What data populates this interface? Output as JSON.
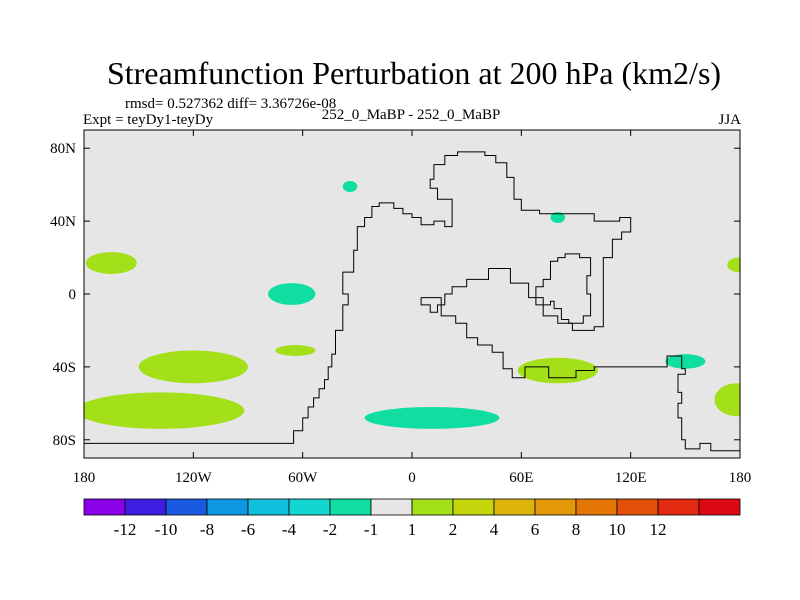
{
  "chart_data": {
    "type": "heatmap",
    "title": "Streamfunction Perturbation at 200 hPa (km2/s)",
    "rmsd_line": "rmsd= 0.527362 diff= 3.36726e-08",
    "experiment_label": "Expt = teyDy1-teyDy",
    "center_label": "252_0_MaBP - 252_0_MaBP",
    "season_label": "JJA",
    "xlim": [
      -180,
      180
    ],
    "ylim": [
      -90,
      90
    ],
    "x_ticks": [
      {
        "value": -180,
        "label": "180"
      },
      {
        "value": -120,
        "label": "120W"
      },
      {
        "value": -60,
        "label": "60W"
      },
      {
        "value": 0,
        "label": "0"
      },
      {
        "value": 60,
        "label": "60E"
      },
      {
        "value": 120,
        "label": "120E"
      },
      {
        "value": 180,
        "label": "180"
      }
    ],
    "y_ticks": [
      {
        "value": 80,
        "label": "80N"
      },
      {
        "value": 40,
        "label": "40N"
      },
      {
        "value": 0,
        "label": "0"
      },
      {
        "value": -40,
        "label": "40S"
      },
      {
        "value": -80,
        "label": "80S"
      }
    ],
    "background_color": "#e6e6e6",
    "colorbar": {
      "colors": [
        "#8a00e8",
        "#3f1ee3",
        "#1a5ae0",
        "#0f96e2",
        "#12bfdc",
        "#14d6d0",
        "#10dea0",
        "#e6e6e6",
        "#a3e01a",
        "#c6d60d",
        "#ddb40a",
        "#e29808",
        "#e37607",
        "#e2500b",
        "#e22a10",
        "#dd0a14"
      ],
      "labels": [
        "-12",
        "-10",
        "-8",
        "-6",
        "-4",
        "-2",
        "-1",
        "1",
        "2",
        "4",
        "6",
        "8",
        "10",
        "12"
      ]
    },
    "anomalies": [
      {
        "name": "n-pacific-east",
        "level": "1 to 2",
        "color": "#a3e01a",
        "lon": -165,
        "lat": 17,
        "lon_radius": 14,
        "lat_radius": 6
      },
      {
        "name": "s-pacific-mid",
        "level": "1 to 2",
        "color": "#a3e01a",
        "lon": -120,
        "lat": -40,
        "lon_radius": 30,
        "lat_radius": 9
      },
      {
        "name": "s-pacific-high",
        "level": "1 to 2",
        "color": "#a3e01a",
        "lon": -138,
        "lat": -64,
        "lon_radius": 46,
        "lat_radius": 10
      },
      {
        "name": "e-pacific-equator",
        "level": "-2 to -1",
        "color": "#10dea0",
        "lon": -66,
        "lat": 0,
        "lon_radius": 13,
        "lat_radius": 6
      },
      {
        "name": "se-pacific",
        "level": "1 to 2",
        "color": "#a3e01a",
        "lon": -64,
        "lat": -31,
        "lon_radius": 11,
        "lat_radius": 3
      },
      {
        "name": "n-atlantic-high",
        "level": "-2 to -1",
        "color": "#10dea0",
        "lon": -34,
        "lat": 59,
        "lon_radius": 4,
        "lat_radius": 3
      },
      {
        "name": "s-ocean-africa",
        "level": "-2 to -1",
        "color": "#10dea0",
        "lon": 11,
        "lat": -68,
        "lon_radius": 37,
        "lat_radius": 6
      },
      {
        "name": "asia-north",
        "level": "-2 to -1",
        "color": "#10dea0",
        "lon": 80,
        "lat": 42,
        "lon_radius": 4,
        "lat_radius": 3
      },
      {
        "name": "s-indian-ocean",
        "level": "1 to 2",
        "color": "#a3e01a",
        "lon": 80,
        "lat": -42,
        "lon_radius": 22,
        "lat_radius": 7
      },
      {
        "name": "s-indian-east",
        "level": "-2 to -1",
        "color": "#10dea0",
        "lon": 150,
        "lat": -37,
        "lon_radius": 11,
        "lat_radius": 4
      },
      {
        "name": "dateline-north",
        "level": "1 to 2",
        "color": "#a3e01a",
        "lon": 179,
        "lat": 16,
        "lon_radius": 6,
        "lat_radius": 4
      },
      {
        "name": "dateline-south",
        "level": "1 to 2",
        "color": "#a3e01a",
        "lon": 178,
        "lat": -58,
        "lon_radius": 12,
        "lat_radius": 9
      }
    ],
    "coastlines": [
      [
        [
          -180,
          -82
        ],
        [
          -65,
          -82
        ],
        [
          -65,
          -75
        ],
        [
          -60,
          -75
        ],
        [
          -60,
          -68
        ],
        [
          -57,
          -68
        ],
        [
          -57,
          -62
        ],
        [
          -54,
          -62
        ],
        [
          -54,
          -57
        ],
        [
          -51,
          -57
        ],
        [
          -51,
          -52
        ],
        [
          -48,
          -52
        ],
        [
          -48,
          -47
        ],
        [
          -46,
          -47
        ],
        [
          -46,
          -40
        ],
        [
          -44,
          -40
        ],
        [
          -44,
          -33
        ],
        [
          -42,
          -33
        ],
        [
          -42,
          -20
        ],
        [
          -38,
          -20
        ],
        [
          -38,
          -6
        ],
        [
          -35,
          -6
        ],
        [
          -35,
          0
        ],
        [
          -38,
          0
        ],
        [
          -38,
          12
        ],
        [
          -32,
          12
        ],
        [
          -32,
          24
        ],
        [
          -30,
          24
        ],
        [
          -30,
          37
        ],
        [
          -26,
          37
        ],
        [
          -26,
          42
        ],
        [
          -22,
          42
        ],
        [
          -22,
          48
        ],
        [
          -18,
          48
        ],
        [
          -18,
          50
        ],
        [
          -10,
          50
        ],
        [
          -10,
          47
        ],
        [
          -5,
          47
        ],
        [
          -5,
          44
        ],
        [
          0,
          44
        ],
        [
          0,
          42
        ],
        [
          5,
          42
        ],
        [
          5,
          38
        ],
        [
          12,
          38
        ],
        [
          12,
          40
        ],
        [
          18,
          40
        ],
        [
          18,
          37
        ],
        [
          22,
          37
        ],
        [
          22,
          52
        ],
        [
          14,
          52
        ],
        [
          14,
          58
        ],
        [
          10,
          58
        ],
        [
          10,
          63
        ],
        [
          12,
          63
        ],
        [
          12,
          71
        ],
        [
          18,
          71
        ],
        [
          18,
          76
        ],
        [
          25,
          76
        ],
        [
          25,
          78
        ],
        [
          40,
          78
        ],
        [
          40,
          76
        ],
        [
          46,
          76
        ],
        [
          46,
          72
        ],
        [
          52,
          72
        ],
        [
          52,
          64
        ],
        [
          56,
          64
        ],
        [
          56,
          52
        ],
        [
          60,
          52
        ],
        [
          60,
          46
        ],
        [
          70,
          46
        ],
        [
          70,
          44
        ],
        [
          100,
          44
        ],
        [
          100,
          40
        ],
        [
          114,
          40
        ],
        [
          114,
          42
        ],
        [
          120,
          42
        ],
        [
          120,
          34
        ],
        [
          115,
          34
        ],
        [
          115,
          30
        ],
        [
          110,
          30
        ],
        [
          110,
          20
        ],
        [
          105,
          20
        ],
        [
          105,
          -18
        ],
        [
          100,
          -18
        ],
        [
          100,
          -20
        ],
        [
          88,
          -20
        ],
        [
          88,
          -16
        ],
        [
          80,
          -16
        ],
        [
          80,
          -12
        ],
        [
          72,
          -12
        ],
        [
          72,
          -2
        ],
        [
          64,
          -2
        ],
        [
          64,
          6
        ],
        [
          54,
          6
        ],
        [
          54,
          14
        ],
        [
          42,
          14
        ],
        [
          42,
          8
        ],
        [
          30,
          8
        ],
        [
          30,
          4
        ],
        [
          22,
          4
        ],
        [
          22,
          0
        ],
        [
          18,
          0
        ],
        [
          18,
          -6
        ],
        [
          14,
          -6
        ],
        [
          14,
          -10
        ],
        [
          10,
          -10
        ],
        [
          10,
          -6
        ],
        [
          5,
          -6
        ],
        [
          5,
          -2
        ],
        [
          16,
          -2
        ],
        [
          16,
          -12
        ],
        [
          24,
          -12
        ],
        [
          24,
          -16
        ],
        [
          30,
          -16
        ],
        [
          30,
          -24
        ],
        [
          36,
          -24
        ],
        [
          36,
          -28
        ],
        [
          44,
          -28
        ],
        [
          44,
          -32
        ],
        [
          50,
          -32
        ],
        [
          50,
          -41
        ],
        [
          55,
          -41
        ],
        [
          55,
          -46
        ],
        [
          62,
          -46
        ],
        [
          62,
          -40
        ],
        [
          75,
          -40
        ],
        [
          75,
          -46
        ],
        [
          90,
          -46
        ],
        [
          90,
          -42
        ],
        [
          100,
          -42
        ],
        [
          100,
          -40
        ],
        [
          140,
          -40
        ],
        [
          140,
          -34
        ],
        [
          148,
          -34
        ],
        [
          148,
          -41
        ],
        [
          150,
          -41
        ],
        [
          150,
          -44
        ],
        [
          146,
          -44
        ],
        [
          146,
          -54
        ],
        [
          148,
          -54
        ],
        [
          148,
          -60
        ],
        [
          146,
          -60
        ],
        [
          146,
          -68
        ],
        [
          148,
          -68
        ],
        [
          148,
          -80
        ],
        [
          150,
          -80
        ],
        [
          150,
          -85
        ],
        [
          158,
          -85
        ],
        [
          158,
          -82
        ],
        [
          164,
          -82
        ],
        [
          164,
          -86
        ],
        [
          180,
          -86
        ]
      ],
      [
        [
          68,
          -2
        ],
        [
          68,
          -6
        ],
        [
          76,
          -6
        ],
        [
          76,
          -4
        ],
        [
          78,
          -4
        ],
        [
          78,
          -8
        ],
        [
          82,
          -8
        ],
        [
          82,
          -14
        ],
        [
          86,
          -14
        ],
        [
          86,
          -16
        ],
        [
          94,
          -16
        ],
        [
          94,
          -12
        ],
        [
          98,
          -12
        ],
        [
          98,
          0
        ],
        [
          96,
          0
        ],
        [
          96,
          10
        ],
        [
          98,
          10
        ],
        [
          98,
          20
        ],
        [
          92,
          20
        ],
        [
          92,
          22
        ],
        [
          84,
          22
        ],
        [
          84,
          20
        ],
        [
          80,
          20
        ],
        [
          80,
          18
        ],
        [
          76,
          18
        ],
        [
          76,
          8
        ],
        [
          72,
          8
        ],
        [
          72,
          4
        ],
        [
          68,
          4
        ],
        [
          68,
          -2
        ]
      ]
    ]
  }
}
